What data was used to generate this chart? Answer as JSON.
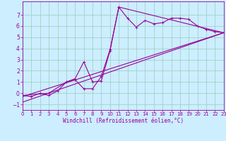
{
  "xlabel": "Windchill (Refroidissement éolien,°C)",
  "bg_color": "#cceeff",
  "line_color": "#990099",
  "grid_color": "#99ccbb",
  "xmin": 0,
  "xmax": 23,
  "ymin": -1.5,
  "ymax": 8.2,
  "yticks": [
    -1,
    0,
    1,
    2,
    3,
    4,
    5,
    6,
    7
  ],
  "xticks": [
    0,
    1,
    2,
    3,
    4,
    5,
    6,
    7,
    8,
    9,
    10,
    11,
    12,
    13,
    14,
    15,
    16,
    17,
    18,
    19,
    20,
    21,
    22,
    23
  ],
  "line1_x": [
    0,
    1,
    2,
    3,
    4,
    5,
    6,
    7,
    8,
    9,
    10,
    11,
    12,
    13,
    14,
    15,
    16,
    17,
    18,
    19,
    20,
    21,
    22,
    23
  ],
  "line1_y": [
    -0.2,
    -0.3,
    0.0,
    -0.2,
    0.2,
    1.0,
    1.3,
    2.8,
    1.0,
    1.1,
    3.8,
    7.7,
    6.7,
    5.9,
    6.5,
    6.2,
    6.3,
    6.7,
    6.7,
    6.6,
    6.0,
    5.7,
    5.5,
    5.4
  ],
  "line2_x": [
    0,
    3,
    5,
    6,
    7,
    8,
    9,
    10,
    11,
    23
  ],
  "line2_y": [
    -0.2,
    0.0,
    1.0,
    1.2,
    0.4,
    0.4,
    1.5,
    3.9,
    7.7,
    5.4
  ],
  "line3_x": [
    0,
    23
  ],
  "line3_y": [
    -0.3,
    5.4
  ],
  "line4_x": [
    0,
    23
  ],
  "line4_y": [
    -0.8,
    5.4
  ],
  "xlabel_fontsize": 5.5,
  "tick_fontsize": 5,
  "marker_size": 1.8,
  "line_width": 0.8
}
